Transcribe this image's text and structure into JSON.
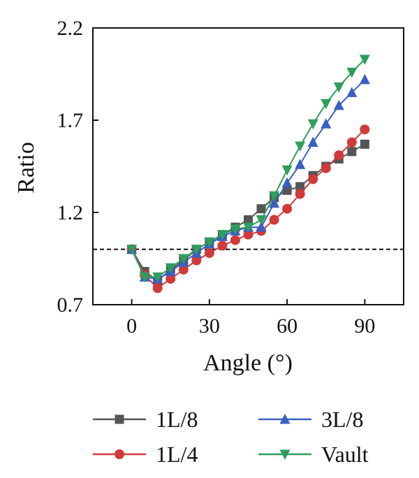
{
  "chart_data": {
    "type": "line",
    "xlabel": "Angle (°)",
    "ylabel": "Ratio",
    "xlim": [
      -15,
      105
    ],
    "ylim": [
      0.7,
      2.2
    ],
    "xticks": [
      0,
      30,
      60,
      90
    ],
    "yticks": [
      0.7,
      1.2,
      1.7,
      2.2
    ],
    "xtick_labels": [
      "0",
      "30",
      "60",
      "90"
    ],
    "ytick_labels": [
      "0.7",
      "1.2",
      "1.7",
      "2.2"
    ],
    "reference_line": {
      "y": 1.0,
      "style": "dashed"
    },
    "grid": false,
    "legend_position": "bottom",
    "x": [
      0,
      5,
      10,
      15,
      20,
      25,
      30,
      35,
      40,
      45,
      50,
      55,
      60,
      65,
      70,
      75,
      80,
      85,
      90
    ],
    "series": [
      {
        "name": "1L/8",
        "color": "#555555",
        "marker": "square",
        "values": [
          1.0,
          0.88,
          0.83,
          0.89,
          0.94,
          1.0,
          1.04,
          1.08,
          1.12,
          1.16,
          1.22,
          1.28,
          1.32,
          1.34,
          1.4,
          1.45,
          1.49,
          1.53,
          1.57
        ]
      },
      {
        "name": "1L/4",
        "color": "#d03a3a",
        "marker": "circle",
        "values": [
          1.0,
          0.86,
          0.79,
          0.84,
          0.89,
          0.94,
          0.98,
          1.02,
          1.05,
          1.08,
          1.1,
          1.16,
          1.22,
          1.3,
          1.38,
          1.44,
          1.51,
          1.58,
          1.65
        ]
      },
      {
        "name": "3L/8",
        "color": "#3a5fc0",
        "marker": "triangle-up",
        "values": [
          1.0,
          0.85,
          0.84,
          0.88,
          0.93,
          0.98,
          1.03,
          1.07,
          1.1,
          1.12,
          1.12,
          1.25,
          1.36,
          1.46,
          1.58,
          1.68,
          1.78,
          1.85,
          1.92
        ]
      },
      {
        "name": "Vault",
        "color": "#2e9e5c",
        "marker": "triangle-down",
        "values": [
          1.0,
          0.85,
          0.85,
          0.9,
          0.95,
          1.0,
          1.04,
          1.08,
          1.11,
          1.12,
          1.16,
          1.29,
          1.43,
          1.56,
          1.68,
          1.79,
          1.88,
          1.96,
          2.03
        ]
      }
    ]
  }
}
